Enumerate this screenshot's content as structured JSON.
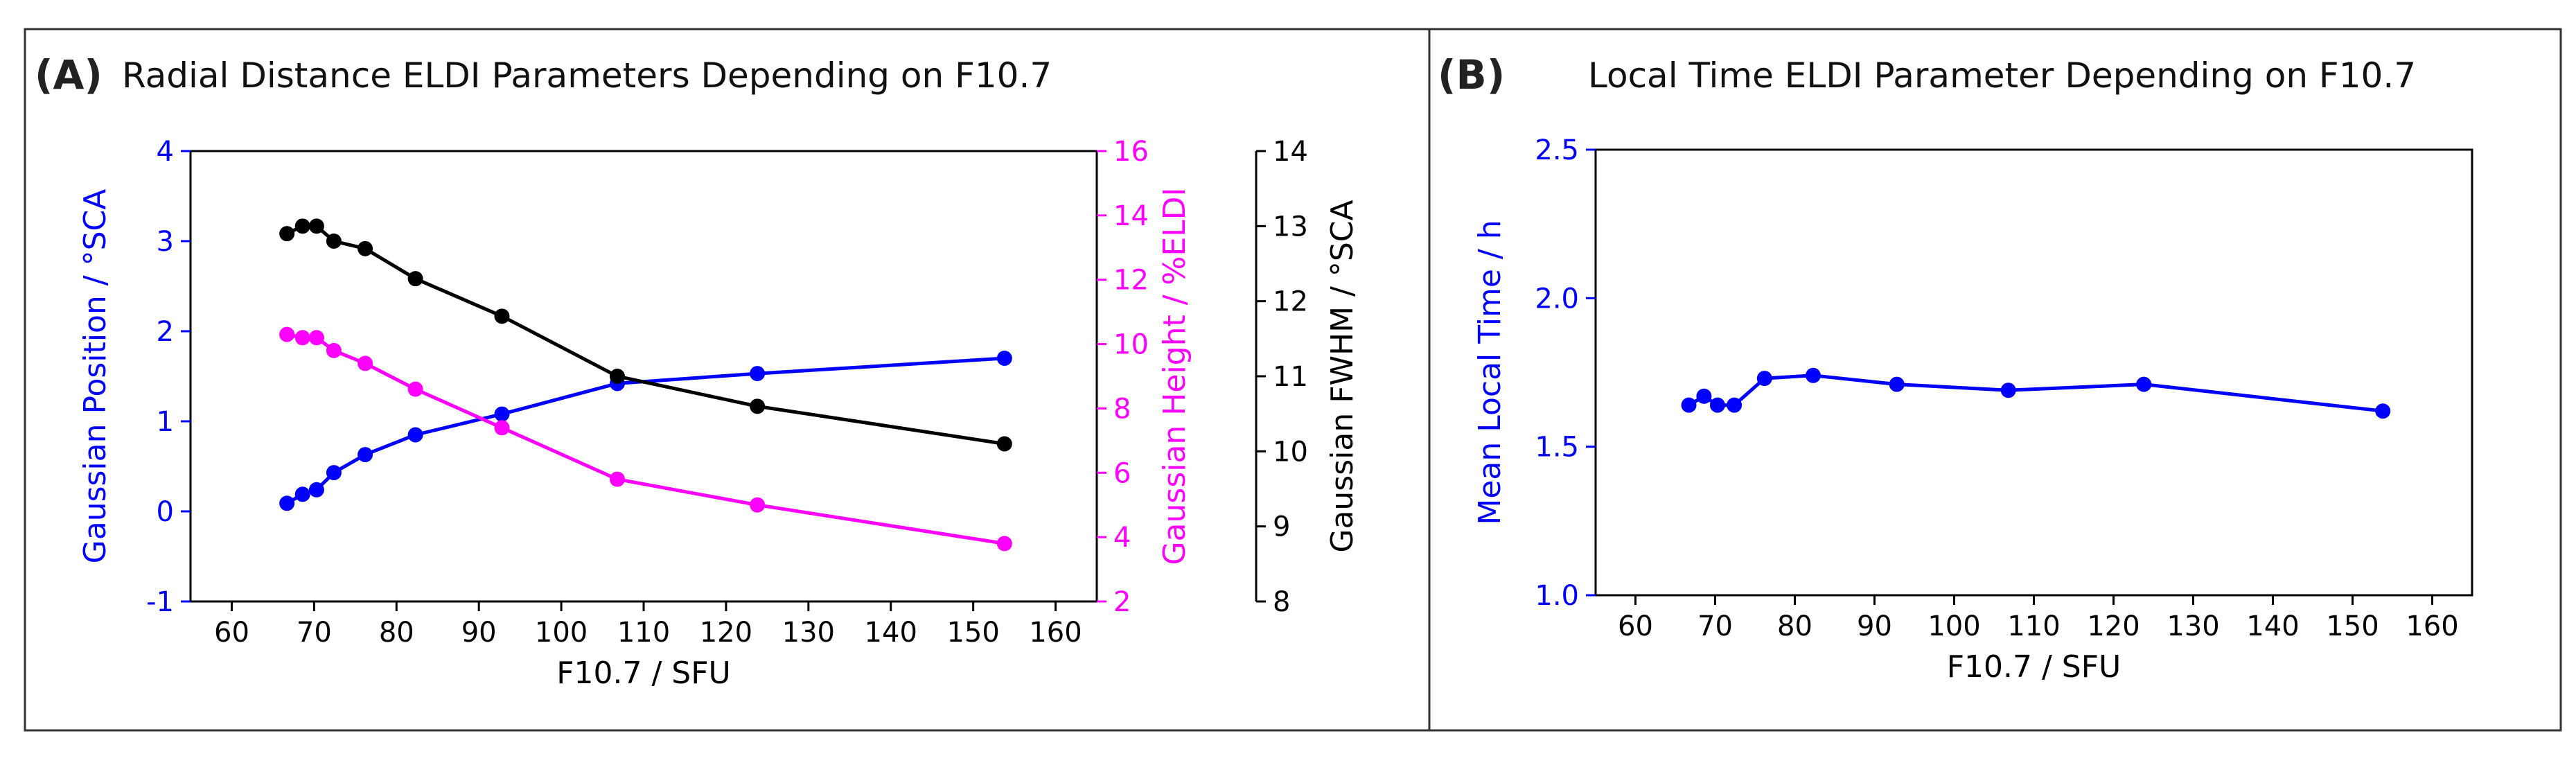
{
  "panels": [
    {
      "letter": "(A)",
      "title": "Radial Distance ELDI Parameters Depending on F10.7"
    },
    {
      "letter": "(B)",
      "title": "Local Time ELDI Parameter Depending on F10.7"
    }
  ],
  "chart_data": [
    {
      "type": "line",
      "title": "Radial Distance ELDI Parameters Depending on F10.7",
      "xlabel": "F10.7 / SFU",
      "xlim": [
        55,
        165
      ],
      "xticks": [
        60,
        70,
        80,
        90,
        100,
        110,
        120,
        130,
        140,
        150,
        160
      ],
      "x": [
        66.7,
        68.6,
        70.3,
        72.4,
        76.2,
        82.3,
        92.8,
        106.8,
        123.8,
        153.8
      ],
      "axes": [
        {
          "id": "y1",
          "side": "left",
          "label": "Gaussian Position / °SCA",
          "color": "#0000ff",
          "ylim": [
            -1,
            4
          ],
          "ticks": [
            -1,
            0,
            1,
            2,
            3,
            4
          ]
        },
        {
          "id": "y2",
          "side": "right",
          "label": "Gaussian Height / %ELDI",
          "color": "#ff00ff",
          "ylim": [
            2,
            16
          ],
          "ticks": [
            2,
            4,
            6,
            8,
            10,
            12,
            14,
            16
          ]
        },
        {
          "id": "y3",
          "side": "right-offset",
          "label": "Gaussian FWHM / °SCA",
          "color": "#000000",
          "ylim": [
            8,
            14
          ],
          "ticks": [
            8,
            9,
            10,
            11,
            12,
            13,
            14
          ]
        }
      ],
      "series": [
        {
          "name": "Gaussian Position",
          "axis": "y1",
          "color": "#0000ff",
          "values": [
            0.09,
            0.19,
            0.24,
            0.43,
            0.63,
            0.85,
            1.08,
            1.42,
            1.53,
            1.7
          ]
        },
        {
          "name": "Gaussian Height",
          "axis": "y2",
          "color": "#ff00ff",
          "values": [
            10.3,
            10.2,
            10.2,
            9.8,
            9.4,
            8.6,
            7.4,
            5.8,
            5.0,
            3.8
          ]
        },
        {
          "name": "Gaussian FWHM",
          "axis": "y3",
          "color": "#000000",
          "values": [
            12.9,
            13.0,
            13.0,
            12.8,
            12.7,
            12.3,
            11.8,
            11.0,
            10.6,
            10.1
          ]
        }
      ]
    },
    {
      "type": "line",
      "title": "Local Time ELDI Parameter Depending on F10.7",
      "xlabel": "F10.7 / SFU",
      "xlim": [
        55,
        165
      ],
      "xticks": [
        60,
        70,
        80,
        90,
        100,
        110,
        120,
        130,
        140,
        150,
        160
      ],
      "x": [
        66.7,
        68.6,
        70.3,
        72.4,
        76.2,
        82.3,
        92.8,
        106.8,
        123.8,
        153.8
      ],
      "axes": [
        {
          "id": "y1",
          "side": "left",
          "label": "Mean Local Time / h",
          "color": "#0000ff",
          "ylim": [
            1.0,
            2.5
          ],
          "ticks": [
            "1.0",
            "1.5",
            "2.0",
            "2.5"
          ]
        }
      ],
      "series": [
        {
          "name": "Mean Local Time",
          "axis": "y1",
          "color": "#0000ff",
          "values": [
            1.64,
            1.67,
            1.64,
            1.64,
            1.73,
            1.74,
            1.71,
            1.69,
            1.71,
            1.62
          ]
        }
      ]
    }
  ]
}
